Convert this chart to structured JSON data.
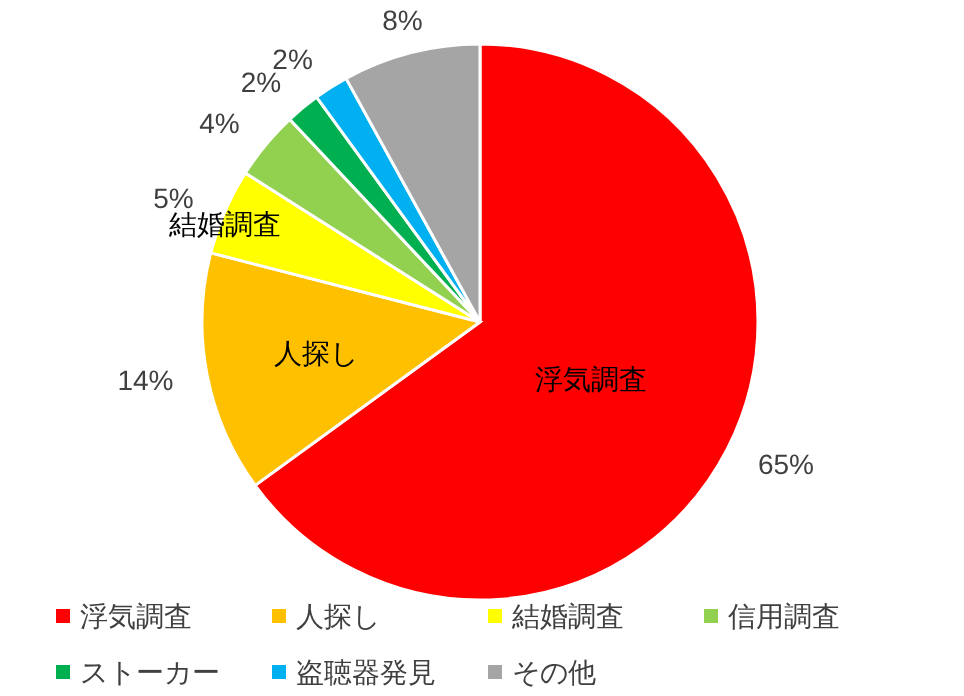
{
  "chart_data": {
    "type": "pie",
    "categories": [
      "浮気調査",
      "人探し",
      "結婚調査",
      "信用調査",
      "ストーカー",
      "盗聴器発見",
      "その他"
    ],
    "values": [
      65,
      14,
      5,
      4,
      2,
      2,
      8
    ],
    "colors": [
      "#ff0000",
      "#ffc000",
      "#ffff00",
      "#92d050",
      "#00b050",
      "#00b0f0",
      "#a5a5a5"
    ],
    "value_labels": [
      "65%",
      "14%",
      "5%",
      "4%",
      "2%",
      "2%",
      "8%"
    ],
    "annotations": [
      {
        "text": "浮気調査",
        "x": "浮気調査"
      },
      {
        "text": "人探し",
        "x": "人探し"
      },
      {
        "text": "結婚調査",
        "x": "結婚調査"
      }
    ],
    "legend": "bottom"
  }
}
